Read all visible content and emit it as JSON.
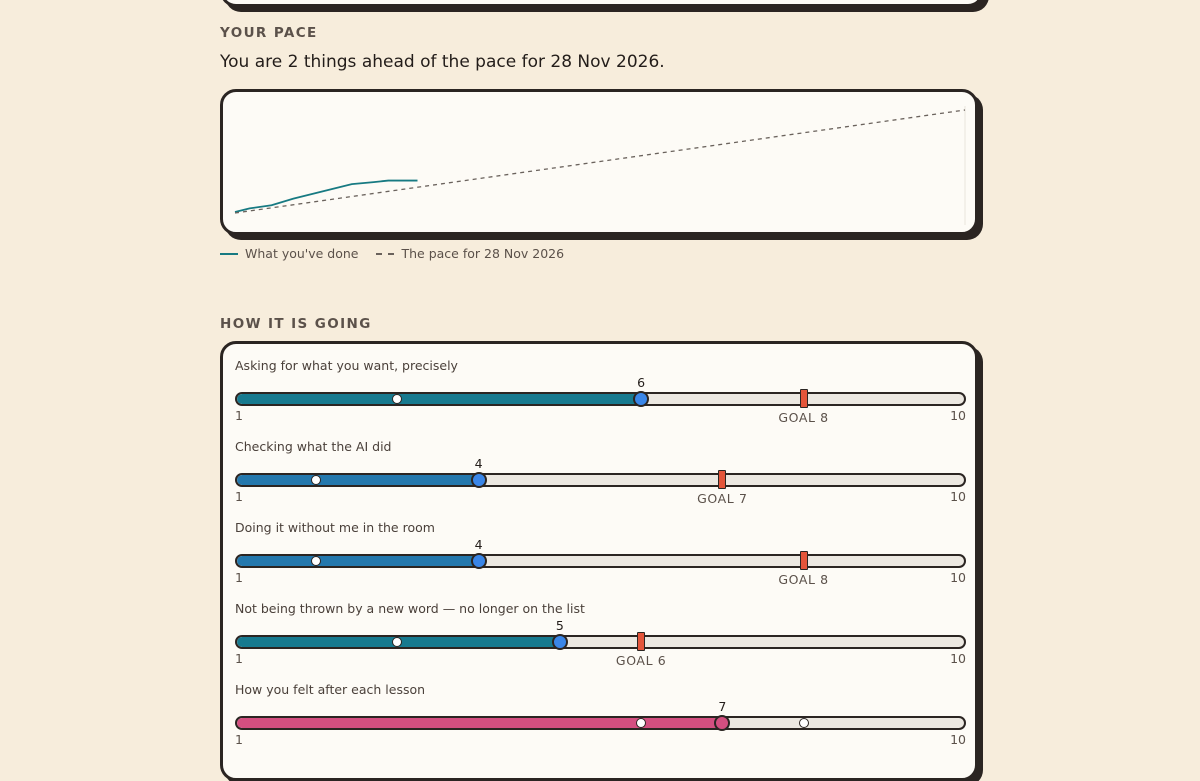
{
  "pace": {
    "section_title": "YOUR PACE",
    "status_prefix": "You are ",
    "status_ahead": "2 things ahead",
    "status_suffix": " of the pace for 28 Nov 2026.",
    "legend_done": "What you've done",
    "legend_pace": "The pace for 28 Nov 2026",
    "colors": {
      "done": "#177a82",
      "pace": "#6a625c"
    }
  },
  "chart_data": {
    "type": "line",
    "series": [
      {
        "name": "What you've done",
        "x": [
          0,
          2,
          5,
          8,
          12,
          16,
          19,
          21,
          25
        ],
        "y": [
          0.2,
          0.9,
          1.5,
          2.8,
          4.2,
          5.6,
          6.0,
          6.3,
          6.3
        ]
      },
      {
        "name": "The pace for 28 Nov 2026",
        "x": [
          0,
          100
        ],
        "y": [
          0,
          20
        ]
      }
    ],
    "xlim": [
      0,
      100
    ],
    "ylim": [
      0,
      20
    ],
    "grid": false
  },
  "how_it_is_going": {
    "section_title": "HOW IT IS GOING",
    "scale_min": "1",
    "scale_max": "10",
    "skills": [
      {
        "label": "Asking for what you want, precisely",
        "value": 6,
        "value_label": "6",
        "previous": 3,
        "goal": 8,
        "goal_label": "GOAL 8",
        "fill_color": "#177a8f",
        "knob_color": "#3a86e8"
      },
      {
        "label": "Checking what the AI did",
        "value": 4,
        "value_label": "4",
        "previous": 2,
        "goal": 7,
        "goal_label": "GOAL 7",
        "fill_color": "#2478ad",
        "knob_color": "#3a86e8"
      },
      {
        "label": "Doing it without me in the room",
        "value": 4,
        "value_label": "4",
        "previous": 2,
        "goal": 8,
        "goal_label": "GOAL 8",
        "fill_color": "#2478ad",
        "knob_color": "#3a86e8"
      },
      {
        "label": "Not being thrown by a new word — no longer on the list",
        "value": 5,
        "value_label": "5",
        "previous": 3,
        "goal": 6,
        "goal_label": "GOAL 6",
        "fill_color": "#177a8f",
        "knob_color": "#3a86e8"
      },
      {
        "label": "How you felt after each lesson",
        "value": 7,
        "value_label": "7",
        "previous": 6,
        "secondary": 8,
        "fill_color": "#d44f80",
        "knob_color": "#d44f80"
      }
    ]
  }
}
